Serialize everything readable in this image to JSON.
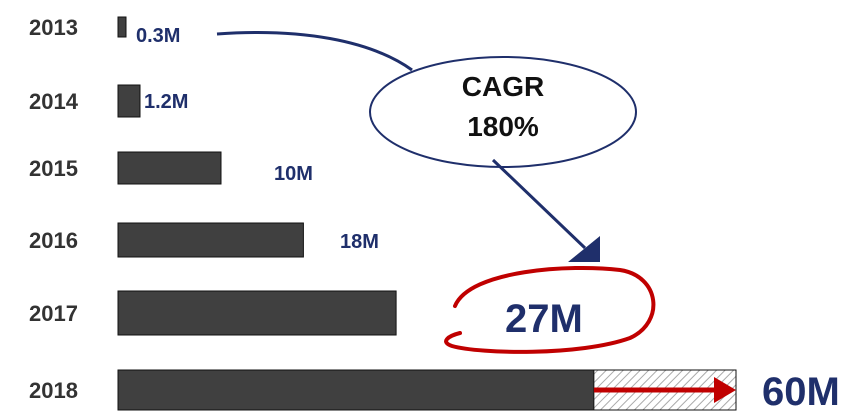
{
  "chart_data": {
    "type": "bar",
    "orientation": "horizontal",
    "categories": [
      "2013",
      "2014",
      "2015",
      "2016",
      "2017",
      "2018"
    ],
    "values": [
      0.3,
      1.2,
      10,
      18,
      27,
      60
    ],
    "value_labels": [
      "0.3M",
      "1.2M",
      "10M",
      "18M",
      "27M",
      "60M"
    ],
    "projection": {
      "category": "2018",
      "solid_value": 46.2,
      "projected_value": 60
    },
    "annotation": {
      "line1": "CAGR",
      "line2": "180%"
    },
    "title": "",
    "xlabel": "",
    "ylabel": "",
    "grid": false,
    "legend": "none",
    "colors": {
      "bar": "#404040",
      "bar_border": "#111111",
      "label": "#1f2f6b",
      "year": "#333333",
      "highlight": "#c00000",
      "arrow": "#1f2f6b",
      "projection_arrow": "#c00000"
    }
  }
}
